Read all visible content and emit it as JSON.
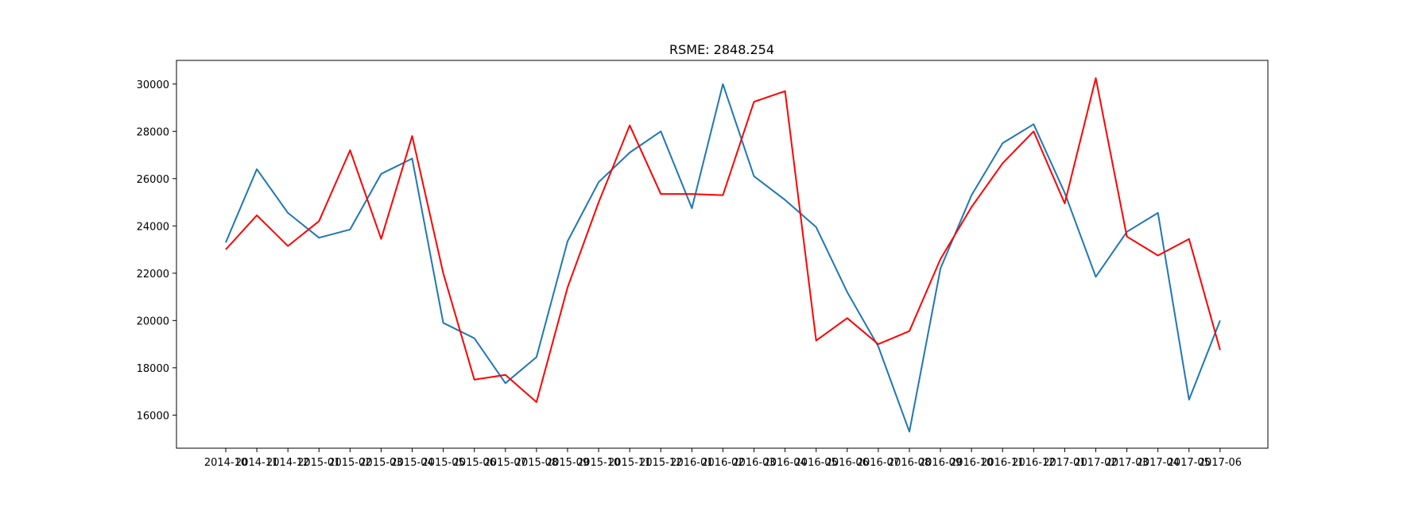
{
  "chart_data": {
    "type": "line",
    "title": "RSME: 2848.254",
    "xlabel": "",
    "ylabel": "",
    "x": [
      "2014-10",
      "2014-11",
      "2014-12",
      "2015-01",
      "2015-02",
      "2015-03",
      "2015-04",
      "2015-05",
      "2015-06",
      "2015-07",
      "2015-08",
      "2015-09",
      "2015-10",
      "2015-11",
      "2015-12",
      "2016-01",
      "2016-02",
      "2016-03",
      "2016-04",
      "2016-05",
      "2016-06",
      "2016-07",
      "2016-08",
      "2016-09",
      "2016-10",
      "2016-11",
      "2016-12",
      "2017-01",
      "2017-02",
      "2017-03",
      "2017-04",
      "2017-05",
      "2017-06"
    ],
    "ylim": [
      14600,
      31000
    ],
    "yticks": [
      16000,
      18000,
      20000,
      22000,
      24000,
      26000,
      28000,
      30000
    ],
    "grid": false,
    "series": [
      {
        "color": "#1f77b4",
        "values": [
          23300,
          26400,
          24550,
          23500,
          23850,
          26200,
          26850,
          19900,
          19250,
          17350,
          18450,
          23350,
          25850,
          27100,
          28000,
          24750,
          30000,
          26100,
          25100,
          23950,
          21200,
          18900,
          15300,
          22200,
          25300,
          27500,
          28300,
          25400,
          21850,
          23750,
          24550,
          16650,
          20000
        ]
      },
      {
        "color": "#ff0000",
        "values": [
          23000,
          24450,
          23150,
          24200,
          27200,
          23450,
          27800,
          22000,
          17500,
          17700,
          16550,
          21400,
          25000,
          28250,
          25350,
          25350,
          25300,
          29250,
          29700,
          19150,
          20100,
          19000,
          19550,
          22600,
          24800,
          26650,
          28000,
          24950,
          30250,
          23550,
          22750,
          23450,
          18750
        ]
      }
    ]
  }
}
